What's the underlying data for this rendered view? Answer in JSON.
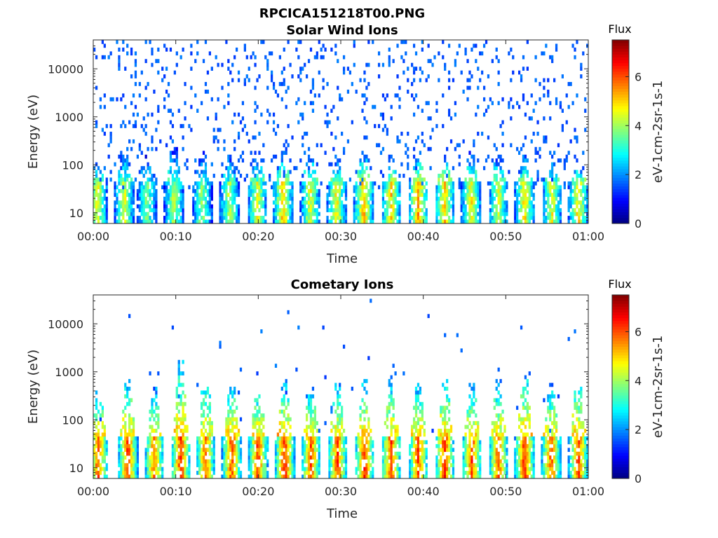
{
  "figure": {
    "title": "RPCICA151218T00.PNG"
  },
  "chart_data": [
    {
      "type": "heatmap",
      "title": "Solar Wind Ions",
      "xlabel": "Time",
      "ylabel": "Energy (eV)",
      "x_range": [
        "00:00",
        "01:00"
      ],
      "x_ticks": [
        "00:00",
        "00:10",
        "00:20",
        "00:30",
        "00:40",
        "00:50",
        "01:00"
      ],
      "y_scale": "log",
      "ylim": [
        6,
        40000
      ],
      "y_ticks": [
        {
          "value": 10,
          "label": "10"
        },
        {
          "value": 100,
          "label": "100"
        },
        {
          "value": 1000,
          "label": "1000"
        },
        {
          "value": 10000,
          "label": "10000"
        }
      ],
      "colorbar": {
        "title": "Flux",
        "label": "eV-1cm-2sr-1s-1",
        "range": [
          0,
          7.5
        ],
        "ticks": [
          0,
          2,
          4,
          6
        ],
        "colormap": "jet"
      },
      "bursts": [
        {
          "t": 0.5,
          "level": 4.6,
          "top": 120
        },
        {
          "t": 3.8,
          "level": 4.4,
          "top": 200
        },
        {
          "t": 6.5,
          "level": 3.8,
          "top": 150
        },
        {
          "t": 9.8,
          "level": 4.2,
          "top": 250
        },
        {
          "t": 13.2,
          "level": 4.0,
          "top": 180
        },
        {
          "t": 16.5,
          "level": 4.3,
          "top": 160
        },
        {
          "t": 19.9,
          "level": 4.5,
          "top": 140
        },
        {
          "t": 23.0,
          "level": 5.2,
          "top": 150
        },
        {
          "t": 26.3,
          "level": 4.6,
          "top": 170
        },
        {
          "t": 29.5,
          "level": 4.8,
          "top": 120
        },
        {
          "t": 32.8,
          "level": 5.3,
          "top": 180
        },
        {
          "t": 36.1,
          "level": 5.1,
          "top": 130
        },
        {
          "t": 39.4,
          "level": 5.4,
          "top": 150
        },
        {
          "t": 42.6,
          "level": 5.2,
          "top": 170
        },
        {
          "t": 45.8,
          "level": 4.8,
          "top": 200
        },
        {
          "t": 49.1,
          "level": 4.5,
          "top": 160
        },
        {
          "t": 52.3,
          "level": 4.9,
          "top": 150
        },
        {
          "t": 55.6,
          "level": 4.6,
          "top": 120
        },
        {
          "t": 58.8,
          "level": 5.0,
          "top": 100
        }
      ],
      "background": {
        "density": 0.09,
        "level": 1.3
      }
    },
    {
      "type": "heatmap",
      "title": "Cometary Ions",
      "xlabel": "Time",
      "ylabel": "Energy (eV)",
      "x_range": [
        "00:00",
        "01:00"
      ],
      "x_ticks": [
        "00:00",
        "00:10",
        "00:20",
        "00:30",
        "00:40",
        "00:50",
        "01:00"
      ],
      "y_scale": "log",
      "ylim": [
        6,
        40000
      ],
      "y_ticks": [
        {
          "value": 10,
          "label": "10"
        },
        {
          "value": 100,
          "label": "100"
        },
        {
          "value": 1000,
          "label": "1000"
        },
        {
          "value": 10000,
          "label": "10000"
        }
      ],
      "colorbar": {
        "title": "Flux",
        "label": "eV-1cm-2sr-1s-1",
        "range": [
          0,
          7.5
        ],
        "ticks": [
          0,
          2,
          4,
          6
        ],
        "colormap": "jet"
      },
      "bursts": [
        {
          "t": 0.6,
          "level": 6.0,
          "top": 500
        },
        {
          "t": 4.2,
          "level": 6.2,
          "top": 800
        },
        {
          "t": 7.4,
          "level": 5.8,
          "top": 450
        },
        {
          "t": 10.6,
          "level": 6.3,
          "top": 2000
        },
        {
          "t": 13.6,
          "level": 5.9,
          "top": 1200
        },
        {
          "t": 16.8,
          "level": 6.1,
          "top": 700
        },
        {
          "t": 20.0,
          "level": 6.2,
          "top": 500
        },
        {
          "t": 23.2,
          "level": 6.4,
          "top": 600
        },
        {
          "t": 26.4,
          "level": 6.0,
          "top": 500
        },
        {
          "t": 29.6,
          "level": 6.1,
          "top": 600
        },
        {
          "t": 32.9,
          "level": 6.3,
          "top": 700
        },
        {
          "t": 36.1,
          "level": 6.2,
          "top": 800
        },
        {
          "t": 39.4,
          "level": 6.1,
          "top": 600
        },
        {
          "t": 42.6,
          "level": 6.3,
          "top": 900
        },
        {
          "t": 45.9,
          "level": 6.1,
          "top": 600
        },
        {
          "t": 49.1,
          "level": 6.0,
          "top": 700
        },
        {
          "t": 52.3,
          "level": 6.4,
          "top": 900
        },
        {
          "t": 55.5,
          "level": 6.0,
          "top": 600
        },
        {
          "t": 58.8,
          "level": 6.2,
          "top": 800
        }
      ],
      "background": {
        "density": 0.01,
        "level": 1.3
      }
    }
  ]
}
